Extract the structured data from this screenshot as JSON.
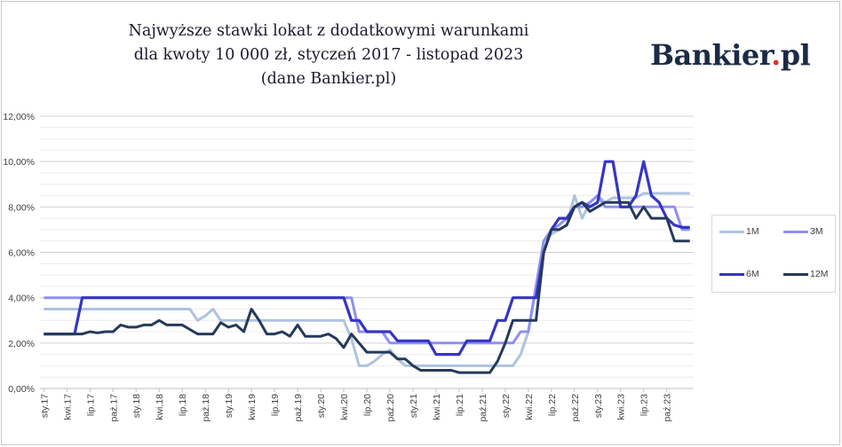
{
  "header": {
    "title_lines": [
      "Najwyższe stawki lokat z dodatkowymi warunkami",
      "dla kwoty 10 000 zł, styczeń 2017 - listopad 2023",
      "(dane Bankier.pl)"
    ],
    "logo_text": "Bankier",
    "logo_dot": ".",
    "logo_suffix": "pl"
  },
  "colors": {
    "1M": "#aec3df",
    "3M": "#8f8fef",
    "6M": "#3535c4",
    "12M": "#243a5a",
    "grid": "#d9d9d9",
    "logo_dot": "#e0352b"
  },
  "chart_data": {
    "type": "line",
    "title": "Najwyższe stawki lokat z dodatkowymi warunkami dla kwoty 10 000 zł, styczeń 2017 - listopad 2023 (dane Bankier.pl)",
    "xlabel": "",
    "ylabel": "",
    "ylim": [
      0,
      12
    ],
    "y_ticks": [
      "0,00%",
      "2,00%",
      "4,00%",
      "6,00%",
      "8,00%",
      "10,00%",
      "12,00%"
    ],
    "y_tick_values": [
      0,
      2,
      4,
      6,
      8,
      10,
      12
    ],
    "grid": true,
    "legend_position": "right",
    "x_tick_labels": [
      "sty.17",
      "kwi.17",
      "lip.17",
      "paź.17",
      "sty.18",
      "kwi.18",
      "lip.18",
      "paź.18",
      "sty.19",
      "kwi.19",
      "lip.19",
      "paź.19",
      "sty.20",
      "kwi.20",
      "lip.20",
      "paź.20",
      "sty.21",
      "kwi.21",
      "lip.21",
      "paź.21",
      "sty.22",
      "kwi.22",
      "lip.22",
      "paź.22",
      "sty.23",
      "kwi.23",
      "lip.23",
      "paź.23"
    ],
    "x_start": "2017-01",
    "series": [
      {
        "name": "1M",
        "values": [
          3.5,
          3.5,
          3.5,
          3.5,
          3.5,
          3.5,
          3.5,
          3.5,
          3.5,
          3.5,
          3.5,
          3.5,
          3.5,
          3.5,
          3.5,
          3.5,
          3.5,
          3.5,
          3.5,
          3.5,
          3.0,
          3.2,
          3.5,
          3.0,
          3.0,
          3.0,
          3.0,
          3.0,
          3.0,
          3.0,
          3.0,
          3.0,
          3.0,
          3.0,
          3.0,
          3.0,
          3.0,
          3.0,
          3.0,
          3.0,
          2.2,
          1.0,
          1.0,
          1.2,
          1.5,
          1.7,
          1.3,
          1.0,
          1.0,
          1.0,
          1.0,
          1.0,
          1.0,
          1.0,
          1.0,
          1.0,
          1.0,
          1.0,
          1.0,
          1.0,
          1.0,
          1.0,
          1.5,
          2.5,
          4.5,
          6.5,
          6.8,
          7.0,
          7.2,
          8.5,
          7.5,
          8.2,
          8.5,
          8.2,
          8.4,
          8.4,
          8.4,
          8.4,
          8.6,
          8.6,
          8.6,
          8.6,
          8.6,
          8.6,
          8.6
        ]
      },
      {
        "name": "3M",
        "values": [
          4.0,
          4.0,
          4.0,
          4.0,
          4.0,
          4.0,
          4.0,
          4.0,
          4.0,
          4.0,
          4.0,
          4.0,
          4.0,
          4.0,
          4.0,
          4.0,
          4.0,
          4.0,
          4.0,
          4.0,
          4.0,
          4.0,
          4.0,
          4.0,
          4.0,
          4.0,
          4.0,
          4.0,
          4.0,
          4.0,
          4.0,
          4.0,
          4.0,
          4.0,
          4.0,
          4.0,
          4.0,
          4.0,
          4.0,
          4.0,
          4.0,
          2.5,
          2.5,
          2.5,
          2.5,
          2.0,
          2.0,
          2.0,
          2.0,
          2.0,
          2.0,
          2.0,
          2.0,
          2.0,
          2.0,
          2.0,
          2.0,
          2.0,
          2.0,
          2.0,
          2.0,
          2.0,
          2.5,
          2.5,
          4.5,
          6.5,
          7.0,
          7.2,
          7.5,
          8.0,
          8.0,
          8.2,
          8.5,
          8.0,
          8.0,
          8.0,
          8.0,
          8.0,
          8.0,
          8.0,
          8.0,
          8.0,
          8.0,
          7.0,
          7.0
        ]
      },
      {
        "name": "6M",
        "values": [
          2.4,
          2.4,
          2.4,
          2.4,
          2.4,
          4.0,
          4.0,
          4.0,
          4.0,
          4.0,
          4.0,
          4.0,
          4.0,
          4.0,
          4.0,
          4.0,
          4.0,
          4.0,
          4.0,
          4.0,
          4.0,
          4.0,
          4.0,
          4.0,
          4.0,
          4.0,
          4.0,
          4.0,
          4.0,
          4.0,
          4.0,
          4.0,
          4.0,
          4.0,
          4.0,
          4.0,
          4.0,
          4.0,
          4.0,
          4.0,
          3.0,
          3.0,
          2.5,
          2.5,
          2.5,
          2.5,
          2.1,
          2.1,
          2.1,
          2.1,
          2.1,
          1.5,
          1.5,
          1.5,
          1.5,
          2.1,
          2.1,
          2.1,
          2.1,
          3.0,
          3.0,
          4.0,
          4.0,
          4.0,
          4.0,
          6.0,
          7.0,
          7.5,
          7.5,
          8.0,
          8.2,
          8.0,
          8.2,
          10.0,
          10.0,
          8.0,
          8.0,
          8.5,
          10.0,
          8.5,
          8.2,
          7.5,
          7.2,
          7.1,
          7.1
        ]
      },
      {
        "name": "12M",
        "values": [
          2.4,
          2.4,
          2.4,
          2.4,
          2.4,
          2.4,
          2.5,
          2.45,
          2.5,
          2.5,
          2.8,
          2.7,
          2.7,
          2.8,
          2.8,
          3.0,
          2.8,
          2.8,
          2.8,
          2.6,
          2.4,
          2.4,
          2.4,
          2.9,
          2.7,
          2.8,
          2.5,
          3.5,
          3.0,
          2.4,
          2.4,
          2.5,
          2.3,
          2.8,
          2.3,
          2.3,
          2.3,
          2.4,
          2.2,
          1.8,
          2.4,
          2.0,
          1.6,
          1.6,
          1.6,
          1.6,
          1.3,
          1.3,
          1.0,
          0.8,
          0.8,
          0.8,
          0.8,
          0.8,
          0.7,
          0.7,
          0.7,
          0.7,
          0.7,
          1.2,
          2.0,
          3.0,
          3.0,
          3.0,
          3.0,
          6.0,
          7.0,
          7.0,
          7.2,
          8.0,
          8.2,
          7.8,
          8.0,
          8.2,
          8.2,
          8.2,
          8.2,
          7.5,
          8.0,
          7.5,
          7.5,
          7.5,
          6.5,
          6.5,
          6.5
        ]
      }
    ]
  }
}
